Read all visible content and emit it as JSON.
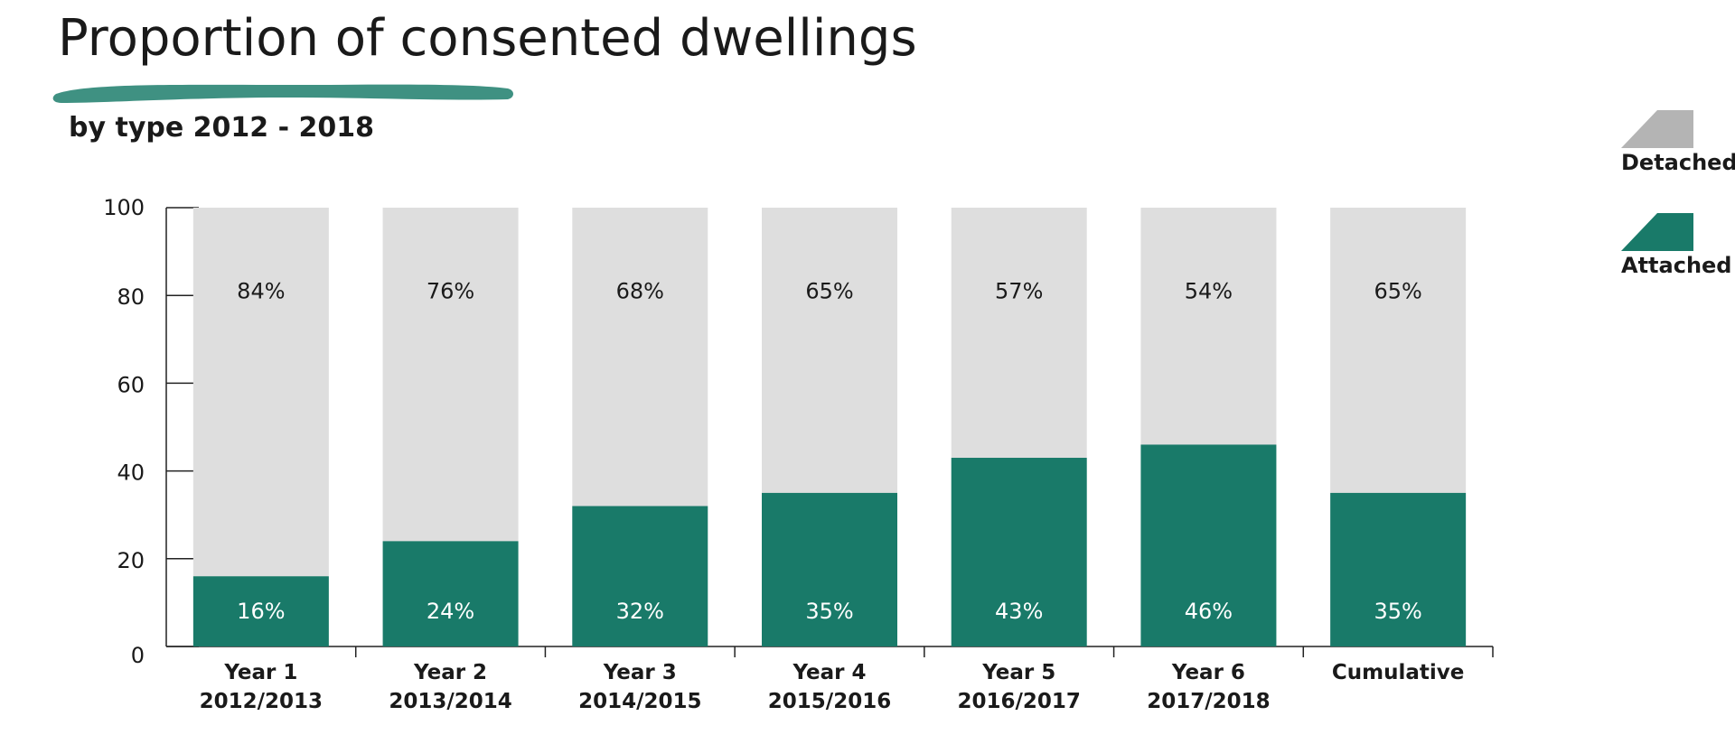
{
  "title": "Proportion of consented dwellings",
  "subtitle": "by type 2012 - 2018",
  "legend": {
    "detached": "Detached",
    "attached": "Attached"
  },
  "colors": {
    "detached": "#dedede",
    "attached": "#197a69",
    "brush": "#3f9182",
    "legend_detached": "#b4b4b4",
    "legend_attached": "#197a69"
  },
  "chart_data": {
    "type": "bar",
    "stacked": true,
    "categories": [
      [
        "Year 1",
        "2012/2013"
      ],
      [
        "Year 2",
        "2013/2014"
      ],
      [
        "Year 3",
        "2014/2015"
      ],
      [
        "Year 4",
        "2015/2016"
      ],
      [
        "Year 5",
        "2016/2017"
      ],
      [
        "Year 6",
        "2017/2018"
      ],
      [
        "Cumulative",
        ""
      ]
    ],
    "series": [
      {
        "name": "Attached",
        "values": [
          16,
          24,
          32,
          35,
          43,
          46,
          35
        ],
        "labels": [
          "16%",
          "24%",
          "32%",
          "35%",
          "43%",
          "46%",
          "35%"
        ]
      },
      {
        "name": "Detached",
        "values": [
          84,
          76,
          68,
          65,
          57,
          54,
          65
        ],
        "labels": [
          "84%",
          "76%",
          "68%",
          "65%",
          "57%",
          "54%",
          "65%"
        ]
      }
    ],
    "yticks": [
      "0",
      "20",
      "40",
      "60",
      "80",
      "100"
    ],
    "ylim": [
      0,
      100
    ],
    "grid": false,
    "legend_position": "right"
  }
}
